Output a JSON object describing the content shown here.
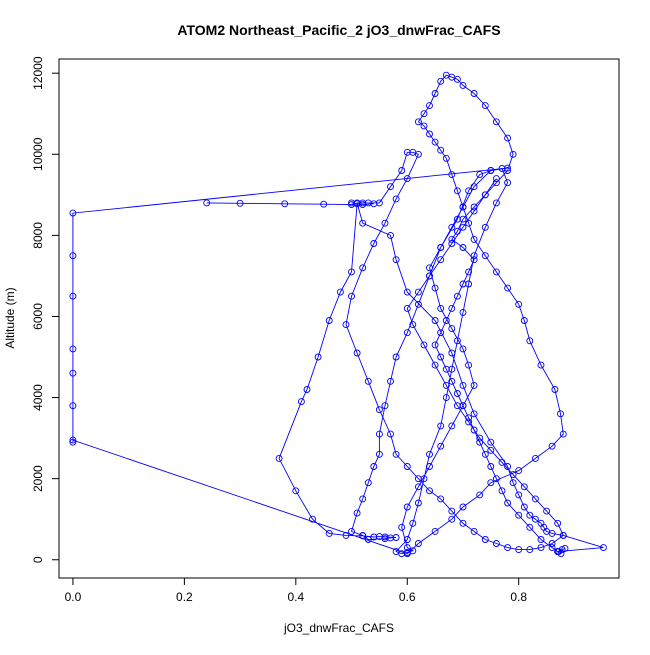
{
  "chart_data": {
    "type": "line",
    "title": "ATOM2 Northeast_Pacific_2 jO3_dnwFrac_CAFS",
    "xlabel": "jO3_dnwFrac_CAFS",
    "ylabel": "Altitude (m)",
    "xlim": [
      -0.025,
      0.98
    ],
    "ylim": [
      -450,
      12350
    ],
    "x_ticks": [
      0.0,
      0.2,
      0.4,
      0.6,
      0.8
    ],
    "x_tick_labels": [
      "0.0",
      "0.2",
      "0.4",
      "0.6",
      "0.8"
    ],
    "y_ticks": [
      0,
      2000,
      4000,
      6000,
      8000,
      10000,
      12000
    ],
    "y_tick_labels": [
      "0",
      "2000",
      "4000",
      "6000",
      "8000",
      "10000",
      "12000"
    ],
    "grid": false,
    "series_color": "#0000ff",
    "markers": "open-circle",
    "series": [
      {
        "x": [
          0.872,
          0.878,
          0.883,
          0.87,
          0.952,
          0.88,
          0.86,
          0.85,
          0.845,
          0.84,
          0.83,
          0.82,
          0.81,
          0.8,
          0.79,
          0.78,
          0.75,
          0.72,
          0.7,
          0.68,
          0.65,
          0.6,
          0.58,
          0.57,
          0.52,
          0.51,
          0.53,
          0.54,
          0.52,
          0.5,
          0.51,
          0.5,
          0.48,
          0.46,
          0.44,
          0.42,
          0.41,
          0.37,
          0.4,
          0.43,
          0.46,
          0.49,
          0.52,
          0.54,
          0.55,
          0.56,
          0.58,
          0.57,
          0.56,
          0.53,
          0.52,
          0.5,
          0.51,
          0.52,
          0.53,
          0.54,
          0.55,
          0.55,
          0.56,
          0.57,
          0.58,
          0.6,
          0.62,
          0.64,
          0.66,
          0.69,
          0.71,
          0.73,
          0.75,
          0.77,
          0.78,
          0.76,
          0.74,
          0.72,
          0.71,
          0.7,
          0.69,
          0.68,
          0.67,
          0.66,
          0.64,
          0.63,
          0.62,
          0.61,
          0.6,
          0.58,
          0.59,
          0.6,
          0.61,
          0.6,
          0.59,
          0.6,
          0.62,
          0.64,
          0.66,
          0.68,
          0.7,
          0.72,
          0.71,
          0.7,
          0.68,
          0.66,
          0.65,
          0.64,
          0.66,
          0.68,
          0.7,
          0.72,
          0.75,
          0.78,
          0.0,
          0.0,
          0.0,
          0.0,
          0.0,
          0.0,
          0.0,
          0.0,
          0.6,
          0.62,
          0.65,
          0.68,
          0.7,
          0.73,
          0.75,
          0.8,
          0.83,
          0.86,
          0.88,
          0.875,
          0.865,
          0.84,
          0.82,
          0.81,
          0.8,
          0.78,
          0.76,
          0.74,
          0.72,
          0.71,
          0.7,
          0.69,
          0.68,
          0.67,
          0.66,
          0.65,
          0.64,
          0.63,
          0.62,
          0.63,
          0.64,
          0.65,
          0.66,
          0.67,
          0.68,
          0.69,
          0.7,
          0.72,
          0.74,
          0.76,
          0.78,
          0.79,
          0.78,
          0.76,
          0.74,
          0.72,
          0.7,
          0.69,
          0.68,
          0.7,
          0.72,
          0.71,
          0.7,
          0.69,
          0.68,
          0.67,
          0.66,
          0.65,
          0.66,
          0.67,
          0.68,
          0.69,
          0.7,
          0.71,
          0.72,
          0.73,
          0.74,
          0.75,
          0.76,
          0.77,
          0.78,
          0.8,
          0.82,
          0.84,
          0.86,
          0.87,
          0.876,
          0.87
        ],
        "y": [
          200,
          250,
          280,
          200,
          300,
          600,
          650,
          700,
          800,
          900,
          1000,
          1100,
          1300,
          1600,
          1900,
          2300,
          2900,
          3600,
          4300,
          5100,
          5900,
          6600,
          7400,
          8000,
          8300,
          8800,
          8800,
          8780,
          8760,
          8800,
          8780,
          7100,
          6600,
          5900,
          5000,
          4200,
          3900,
          2500,
          1700,
          1000,
          650,
          600,
          590,
          560,
          570,
          560,
          550,
          540,
          520,
          500,
          600,
          700,
          1150,
          1500,
          1900,
          2300,
          2600,
          3100,
          3800,
          4400,
          5000,
          5600,
          6300,
          7000,
          7700,
          8400,
          9100,
          9500,
          9600,
          9650,
          9300,
          8800,
          8200,
          7500,
          6800,
          6100,
          5400,
          4700,
          4000,
          3300,
          2600,
          2000,
          1400,
          900,
          500,
          200,
          150,
          180,
          220,
          300,
          800,
          1300,
          1800,
          2300,
          2800,
          3300,
          3800,
          4300,
          4800,
          5200,
          5700,
          6200,
          6700,
          7200,
          7700,
          8200,
          8700,
          9200,
          9600,
          9660,
          8550,
          7500,
          6500,
          5200,
          4600,
          3800,
          2900,
          2950,
          150,
          400,
          700,
          1000,
          1300,
          1600,
          1900,
          2200,
          2500,
          2800,
          3100,
          3600,
          4200,
          4800,
          5400,
          5900,
          6300,
          6700,
          7100,
          7500,
          7900,
          8300,
          8700,
          9100,
          9500,
          9900,
          10100,
          10300,
          10500,
          10700,
          10800,
          11000,
          11200,
          11500,
          11800,
          11950,
          11900,
          11850,
          11700,
          11500,
          11200,
          10800,
          10400,
          10000,
          9600,
          9300,
          9000,
          8700,
          8400,
          8100,
          7900,
          7700,
          7400,
          7100,
          6800,
          6500,
          6200,
          5900,
          5600,
          5300,
          5000,
          4700,
          4400,
          4100,
          3800,
          3500,
          3200,
          2900,
          2600,
          2300,
          2000,
          1700,
          1400,
          1100,
          800,
          500,
          300,
          200,
          150,
          200
        ]
      },
      {
        "x": [
          0.24,
          0.3,
          0.38,
          0.45,
          0.5,
          0.52,
          0.55,
          0.57,
          0.59,
          0.6,
          0.61,
          0.62,
          0.6,
          0.58,
          0.56,
          0.54,
          0.52,
          0.5,
          0.49,
          0.51,
          0.53,
          0.55,
          0.57,
          0.58,
          0.6,
          0.62,
          0.64,
          0.66,
          0.68,
          0.7,
          0.72,
          0.74,
          0.76,
          0.78,
          0.8,
          0.82,
          0.84,
          0.86,
          0.88,
          0.87,
          0.85,
          0.83,
          0.81,
          0.79,
          0.77,
          0.75,
          0.73,
          0.71,
          0.69,
          0.67,
          0.65,
          0.63,
          0.61,
          0.6,
          0.62,
          0.64,
          0.66,
          0.68,
          0.7,
          0.72,
          0.74,
          0.76
        ],
        "y": [
          8800,
          8790,
          8780,
          8770,
          8760,
          8800,
          8800,
          9200,
          9600,
          10050,
          10050,
          10000,
          9400,
          8900,
          8300,
          7800,
          7200,
          6500,
          5800,
          5100,
          4400,
          3700,
          3100,
          2600,
          2300,
          2000,
          1700,
          1500,
          1200,
          900,
          700,
          500,
          400,
          300,
          250,
          250,
          300,
          400,
          600,
          900,
          1200,
          1500,
          1800,
          2100,
          2400,
          2700,
          3000,
          3400,
          3800,
          4300,
          4800,
          5300,
          5800,
          6200,
          6600,
          7000,
          7400,
          7800,
          8200,
          8600,
          9000,
          9400
        ]
      }
    ]
  }
}
